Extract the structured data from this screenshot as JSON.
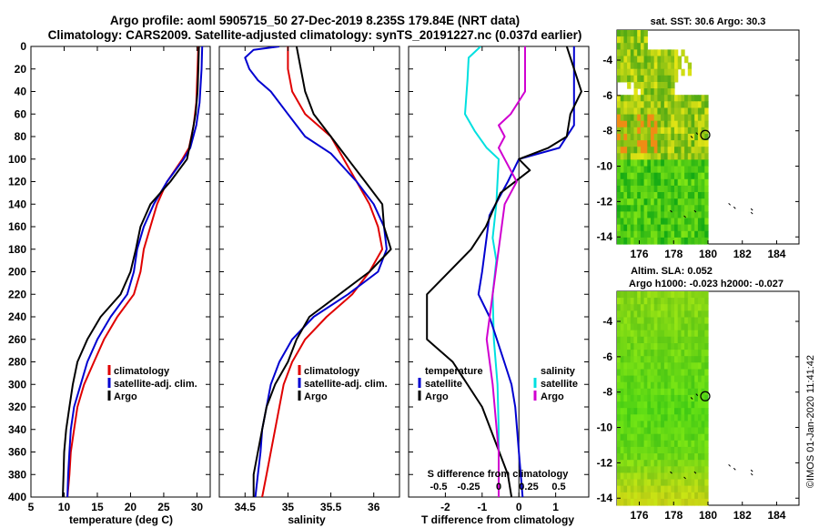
{
  "title_line1": "Argo profile: aoml 5905715_50 27-Dec-2019 8.235S 179.84E (NRT data)",
  "title_line2": "Climatology: CARS2009. Satellite-adjusted climatology: synTS_20191227.nc (0.037d earlier)",
  "sst_title": "sat. SST: 30.6 Argo: 30.3",
  "sla_title1": "Altim. SLA: 0.052",
  "sla_title2": "Argo h1000: -0.023 h2000: -0.027",
  "side_stamp": "©IMOS 01-Jan-2020 11:41:42",
  "colors": {
    "climatology": "#e00000",
    "satellite": "#0000d0",
    "argo": "#000000",
    "t_satellite": "#0000d0",
    "s_satellite": "#00e0e0",
    "s_argo": "#d000d0"
  },
  "chart_data": [
    {
      "type": "line",
      "id": "temperature",
      "xlabel": "temperature (deg C)",
      "ylabel": "",
      "xlim": [
        5,
        32
      ],
      "ylim": [
        400,
        0
      ],
      "xticks": [
        "5",
        "10",
        "15",
        "20",
        "25",
        "30"
      ],
      "yticks": [
        "0",
        "20",
        "40",
        "60",
        "80",
        "100",
        "120",
        "140",
        "160",
        "180",
        "200",
        "220",
        "240",
        "260",
        "280",
        "300",
        "320",
        "340",
        "360",
        "380",
        "400"
      ],
      "legend": [
        {
          "label": "climatology",
          "color": "climatology"
        },
        {
          "label": "satellite-adj. clim.",
          "color": "satellite"
        },
        {
          "label": "Argo",
          "color": "argo"
        }
      ],
      "series": [
        {
          "name": "climatology",
          "color": "climatology",
          "points": [
            [
              30.2,
              0
            ],
            [
              30.1,
              20
            ],
            [
              29.9,
              50
            ],
            [
              29.5,
              70
            ],
            [
              28.8,
              90
            ],
            [
              27.8,
              100
            ],
            [
              25.5,
              120
            ],
            [
              24,
              140
            ],
            [
              23,
              160
            ],
            [
              22,
              180
            ],
            [
              21.5,
              200
            ],
            [
              20.5,
              220
            ],
            [
              18,
              240
            ],
            [
              16,
              260
            ],
            [
              14.5,
              280
            ],
            [
              13,
              300
            ],
            [
              12,
              320
            ],
            [
              11.5,
              340
            ],
            [
              11,
              360
            ],
            [
              10.8,
              380
            ],
            [
              10.5,
              400
            ]
          ]
        },
        {
          "name": "satellite-adj. clim.",
          "color": "satellite",
          "points": [
            [
              30.8,
              0
            ],
            [
              30.7,
              20
            ],
            [
              30.4,
              50
            ],
            [
              29.9,
              70
            ],
            [
              29,
              90
            ],
            [
              28,
              100
            ],
            [
              25.5,
              120
            ],
            [
              23.5,
              140
            ],
            [
              22,
              160
            ],
            [
              21,
              180
            ],
            [
              20.5,
              200
            ],
            [
              19.5,
              220
            ],
            [
              17,
              240
            ],
            [
              15,
              260
            ],
            [
              13.5,
              280
            ],
            [
              12.5,
              300
            ],
            [
              11.5,
              320
            ],
            [
              11,
              340
            ],
            [
              10.8,
              360
            ],
            [
              10.6,
              380
            ],
            [
              10.5,
              400
            ]
          ]
        },
        {
          "name": "Argo",
          "color": "argo",
          "points": [
            [
              30.3,
              0
            ],
            [
              30.2,
              20
            ],
            [
              30.1,
              40
            ],
            [
              29.8,
              60
            ],
            [
              29.2,
              80
            ],
            [
              28.5,
              100
            ],
            [
              26,
              120
            ],
            [
              23,
              140
            ],
            [
              21.5,
              160
            ],
            [
              20.8,
              180
            ],
            [
              20,
              200
            ],
            [
              18.5,
              220
            ],
            [
              15.5,
              240
            ],
            [
              13.5,
              260
            ],
            [
              12,
              280
            ],
            [
              11.3,
              300
            ],
            [
              10.8,
              320
            ],
            [
              10.3,
              340
            ],
            [
              10,
              360
            ],
            [
              9.9,
              380
            ],
            [
              9.8,
              400
            ]
          ]
        }
      ]
    },
    {
      "type": "line",
      "id": "salinity",
      "xlabel": "salinity",
      "xlim": [
        34.2,
        36.3
      ],
      "ylim": [
        400,
        0
      ],
      "xticks": [
        "34.5",
        "35",
        "35.5",
        "36"
      ],
      "legend": [
        {
          "label": "climatology",
          "color": "climatology"
        },
        {
          "label": "satellite-adj. clim.",
          "color": "satellite"
        },
        {
          "label": "Argo",
          "color": "argo"
        }
      ],
      "series": [
        {
          "name": "climatology",
          "color": "climatology",
          "points": [
            [
              35,
              0
            ],
            [
              35,
              20
            ],
            [
              35.05,
              40
            ],
            [
              35.2,
              60
            ],
            [
              35.5,
              80
            ],
            [
              35.65,
              100
            ],
            [
              35.8,
              120
            ],
            [
              35.95,
              140
            ],
            [
              36.05,
              160
            ],
            [
              36.1,
              180
            ],
            [
              35.95,
              200
            ],
            [
              35.75,
              220
            ],
            [
              35.45,
              240
            ],
            [
              35.2,
              260
            ],
            [
              35.05,
              280
            ],
            [
              34.95,
              300
            ],
            [
              34.9,
              320
            ],
            [
              34.85,
              340
            ],
            [
              34.8,
              360
            ],
            [
              34.75,
              380
            ],
            [
              34.7,
              400
            ]
          ]
        },
        {
          "name": "satellite-adj. clim.",
          "color": "satellite",
          "points": [
            [
              34.9,
              0
            ],
            [
              34.6,
              3
            ],
            [
              34.5,
              10
            ],
            [
              34.55,
              20
            ],
            [
              34.65,
              30
            ],
            [
              34.8,
              40
            ],
            [
              35,
              60
            ],
            [
              35.2,
              80
            ],
            [
              35.5,
              95
            ],
            [
              35.8,
              120
            ],
            [
              36,
              140
            ],
            [
              36.12,
              160
            ],
            [
              36.15,
              180
            ],
            [
              36.05,
              200
            ],
            [
              35.7,
              220
            ],
            [
              35.3,
              240
            ],
            [
              35.05,
              260
            ],
            [
              34.9,
              280
            ],
            [
              34.8,
              300
            ],
            [
              34.75,
              320
            ],
            [
              34.7,
              340
            ],
            [
              34.68,
              360
            ],
            [
              34.65,
              380
            ],
            [
              34.62,
              400
            ]
          ]
        },
        {
          "name": "Argo",
          "color": "argo",
          "points": [
            [
              35.1,
              0
            ],
            [
              35.15,
              20
            ],
            [
              35.2,
              40
            ],
            [
              35.3,
              60
            ],
            [
              35.5,
              80
            ],
            [
              35.7,
              100
            ],
            [
              35.9,
              120
            ],
            [
              36.1,
              140
            ],
            [
              36.12,
              160
            ],
            [
              36.2,
              180
            ],
            [
              35.95,
              200
            ],
            [
              35.6,
              220
            ],
            [
              35.25,
              240
            ],
            [
              35.1,
              260
            ],
            [
              35,
              280
            ],
            [
              34.85,
              300
            ],
            [
              34.75,
              320
            ],
            [
              34.7,
              340
            ],
            [
              34.65,
              360
            ],
            [
              34.6,
              380
            ],
            [
              34.6,
              400
            ]
          ]
        }
      ]
    },
    {
      "type": "line",
      "id": "differences",
      "xlabel": "T difference from climatology",
      "xlabel_top": "S difference from climatology",
      "xlim": [
        -3,
        1.9
      ],
      "xlim_top": [
        -0.75,
        0.75
      ],
      "ylim": [
        400,
        0
      ],
      "xticks": [
        "-2",
        "-1",
        "0",
        "1"
      ],
      "xticks_top": [
        "-0.5",
        "-0.25",
        "0",
        "0.25",
        "0.5"
      ],
      "legend_title_left": "temperature",
      "legend_title_right": "salinity",
      "legend_left": [
        {
          "label": "satellite",
          "color": "t_satellite"
        },
        {
          "label": "Argo",
          "color": "argo"
        }
      ],
      "legend_right": [
        {
          "label": "satellite",
          "color": "s_satellite"
        },
        {
          "label": "Argo",
          "color": "s_argo"
        }
      ],
      "series": [
        {
          "name": "S satellite",
          "color": "s_satellite",
          "axis": "top",
          "points": [
            [
              -0.15,
              0
            ],
            [
              -0.25,
              10
            ],
            [
              -0.26,
              30
            ],
            [
              -0.28,
              60
            ],
            [
              -0.2,
              75
            ],
            [
              -0.1,
              90
            ],
            [
              0,
              100
            ],
            [
              -0.02,
              140
            ],
            [
              -0.05,
              170
            ],
            [
              -0.02,
              190
            ],
            [
              -0.05,
              220
            ],
            [
              -0.04,
              260
            ],
            [
              -0.01,
              300
            ],
            [
              0,
              340
            ],
            [
              0,
              400
            ]
          ]
        },
        {
          "name": "T satellite",
          "color": "t_satellite",
          "axis": "bottom",
          "points": [
            [
              1.5,
              0
            ],
            [
              1.5,
              40
            ],
            [
              1.5,
              70
            ],
            [
              1.1,
              90
            ],
            [
              0,
              100
            ],
            [
              -0.3,
              120
            ],
            [
              -0.8,
              150
            ],
            [
              -1,
              200
            ],
            [
              -1.1,
              220
            ],
            [
              -0.8,
              240
            ],
            [
              -0.4,
              280
            ],
            [
              -0.2,
              300
            ],
            [
              -0.1,
              320
            ],
            [
              0,
              360
            ],
            [
              0.1,
              400
            ]
          ]
        },
        {
          "name": "T Argo",
          "color": "argo",
          "axis": "bottom",
          "points": [
            [
              1.3,
              0
            ],
            [
              1.7,
              40
            ],
            [
              1.4,
              60
            ],
            [
              1.3,
              80
            ],
            [
              0.8,
              90
            ],
            [
              0,
              100
            ],
            [
              0.3,
              110
            ],
            [
              -0.5,
              130
            ],
            [
              -0.9,
              160
            ],
            [
              -1.3,
              180
            ],
            [
              -2.5,
              220
            ],
            [
              -2.5,
              260
            ],
            [
              -1.8,
              280
            ],
            [
              -1,
              320
            ],
            [
              -0.3,
              380
            ],
            [
              -0.2,
              400
            ]
          ]
        },
        {
          "name": "S Argo",
          "color": "s_argo",
          "axis": "top",
          "points": [
            [
              0.22,
              0
            ],
            [
              0.22,
              40
            ],
            [
              0.1,
              60
            ],
            [
              0,
              70
            ],
            [
              0.05,
              80
            ],
            [
              0,
              90
            ],
            [
              0.05,
              100
            ],
            [
              0.15,
              120
            ],
            [
              0.05,
              140
            ],
            [
              0,
              180
            ],
            [
              -0.05,
              220
            ],
            [
              -0.1,
              260
            ],
            [
              -0.05,
              300
            ],
            [
              0,
              360
            ],
            [
              0,
              400
            ]
          ]
        }
      ]
    },
    {
      "type": "heatmap",
      "id": "sst_map",
      "title": "sat. SST: 30.6 Argo: 30.3",
      "xlim": [
        174.7,
        185.3
      ],
      "ylim": [
        -14.4,
        -2.3
      ],
      "xticks": [
        "176",
        "178",
        "180",
        "182",
        "184"
      ],
      "yticks": [
        "-4",
        "-6",
        "-8",
        "-10",
        "-12",
        "-14"
      ],
      "argo_position": [
        179.84,
        -8.235
      ]
    },
    {
      "type": "heatmap",
      "id": "sla_map",
      "title": "Altim. SLA: 0.052",
      "xlim": [
        174.7,
        185.3
      ],
      "ylim": [
        -14.4,
        -2.3
      ],
      "xticks": [
        "176",
        "178",
        "180",
        "182",
        "184"
      ],
      "yticks": [
        "-4",
        "-6",
        "-8",
        "-10",
        "-12",
        "-14"
      ],
      "argo_position": [
        179.84,
        -8.235
      ]
    }
  ]
}
